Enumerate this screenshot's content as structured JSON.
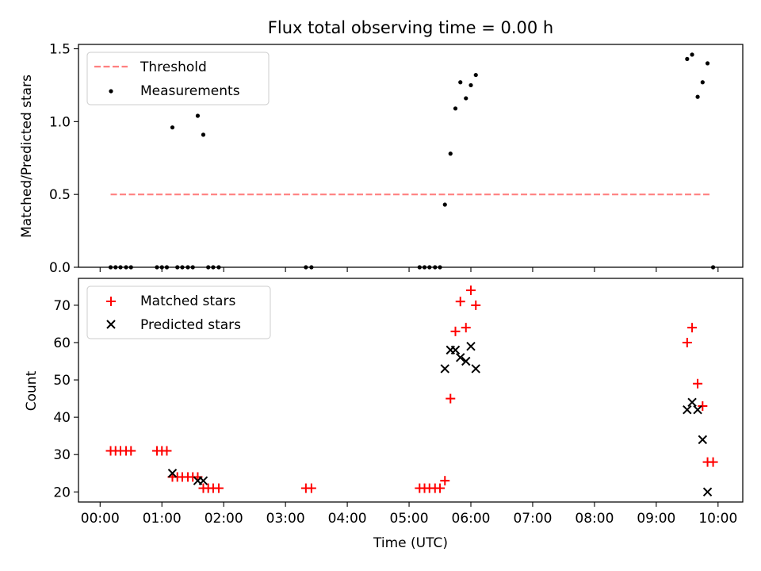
{
  "chart_data": {
    "title": "Flux total observing time = 0.00 h",
    "xlabel": "Time (UTC)",
    "xlim_hours": [
      -0.35,
      10.4
    ],
    "x_ticks": [
      {
        "h": 0,
        "label": "00:00"
      },
      {
        "h": 1,
        "label": "01:00"
      },
      {
        "h": 2,
        "label": "02:00"
      },
      {
        "h": 3,
        "label": "03:00"
      },
      {
        "h": 4,
        "label": "04:00"
      },
      {
        "h": 5,
        "label": "05:00"
      },
      {
        "h": 6,
        "label": "06:00"
      },
      {
        "h": 7,
        "label": "07:00"
      },
      {
        "h": 8,
        "label": "08:00"
      },
      {
        "h": 9,
        "label": "09:00"
      },
      {
        "h": 10,
        "label": "10:00"
      }
    ],
    "top": {
      "type": "scatter",
      "ylabel": "Matched/Predicted stars",
      "ylim": [
        0,
        1.53
      ],
      "yticks": [
        0.0,
        0.5,
        1.0,
        1.5
      ],
      "ytick_labels": [
        "0.0",
        "0.5",
        "1.0",
        "1.5"
      ],
      "legend": [
        "Threshold",
        "Measurements"
      ],
      "threshold": {
        "y": 0.5,
        "x_start": 0.17,
        "x_end": 9.9,
        "color": "#ff8080"
      },
      "measurements": [
        [
          0.17,
          0
        ],
        [
          0.25,
          0
        ],
        [
          0.33,
          0
        ],
        [
          0.42,
          0
        ],
        [
          0.5,
          0
        ],
        [
          0.92,
          0
        ],
        [
          1.0,
          0
        ],
        [
          1.08,
          0
        ],
        [
          1.17,
          0.96
        ],
        [
          1.25,
          0
        ],
        [
          1.33,
          0
        ],
        [
          1.42,
          0
        ],
        [
          1.5,
          0
        ],
        [
          1.58,
          1.04
        ],
        [
          1.67,
          0.91
        ],
        [
          1.75,
          0
        ],
        [
          1.83,
          0
        ],
        [
          1.92,
          0
        ],
        [
          3.33,
          0
        ],
        [
          3.42,
          0
        ],
        [
          5.17,
          0
        ],
        [
          5.25,
          0
        ],
        [
          5.33,
          0
        ],
        [
          5.42,
          0
        ],
        [
          5.5,
          0
        ],
        [
          5.58,
          0.43
        ],
        [
          5.67,
          0.78
        ],
        [
          5.75,
          1.09
        ],
        [
          5.83,
          1.27
        ],
        [
          5.92,
          1.16
        ],
        [
          6.0,
          1.25
        ],
        [
          6.08,
          1.32
        ],
        [
          9.5,
          1.43
        ],
        [
          9.58,
          1.46
        ],
        [
          9.67,
          1.17
        ],
        [
          9.75,
          1.27
        ],
        [
          9.83,
          1.4
        ],
        [
          9.92,
          0
        ]
      ]
    },
    "bottom": {
      "type": "scatter",
      "ylabel": "Count",
      "ylim": [
        17.3,
        77.2
      ],
      "yticks": [
        20,
        30,
        40,
        50,
        60,
        70
      ],
      "legend": [
        "Matched stars",
        "Predicted stars"
      ],
      "series": [
        {
          "name": "Matched stars",
          "marker": "+",
          "color": "#ff0000",
          "points": [
            [
              0.17,
              31
            ],
            [
              0.25,
              31
            ],
            [
              0.33,
              31
            ],
            [
              0.42,
              31
            ],
            [
              0.5,
              31
            ],
            [
              0.92,
              31
            ],
            [
              1.0,
              31
            ],
            [
              1.08,
              31
            ],
            [
              1.17,
              24
            ],
            [
              1.25,
              24
            ],
            [
              1.33,
              24
            ],
            [
              1.42,
              24
            ],
            [
              1.5,
              24
            ],
            [
              1.58,
              24
            ],
            [
              1.67,
              21
            ],
            [
              1.75,
              21
            ],
            [
              1.83,
              21
            ],
            [
              1.92,
              21
            ],
            [
              3.33,
              21
            ],
            [
              3.42,
              21
            ],
            [
              5.17,
              21
            ],
            [
              5.25,
              21
            ],
            [
              5.33,
              21
            ],
            [
              5.42,
              21
            ],
            [
              5.5,
              21
            ],
            [
              5.58,
              23
            ],
            [
              5.67,
              45
            ],
            [
              5.75,
              63
            ],
            [
              5.83,
              71
            ],
            [
              5.92,
              64
            ],
            [
              6.0,
              74
            ],
            [
              6.08,
              70
            ],
            [
              9.5,
              60
            ],
            [
              9.58,
              64
            ],
            [
              9.67,
              49
            ],
            [
              9.75,
              43
            ],
            [
              9.83,
              28
            ],
            [
              9.92,
              28
            ]
          ]
        },
        {
          "name": "Predicted stars",
          "marker": "x",
          "color": "#000000",
          "points": [
            [
              1.17,
              25
            ],
            [
              1.58,
              23
            ],
            [
              1.67,
              23
            ],
            [
              5.58,
              53
            ],
            [
              5.67,
              58
            ],
            [
              5.75,
              58
            ],
            [
              5.83,
              56
            ],
            [
              5.92,
              55
            ],
            [
              6.0,
              59
            ],
            [
              6.08,
              53
            ],
            [
              9.5,
              42
            ],
            [
              9.58,
              44
            ],
            [
              9.67,
              42
            ],
            [
              9.75,
              34
            ],
            [
              9.83,
              20
            ]
          ]
        }
      ]
    }
  }
}
